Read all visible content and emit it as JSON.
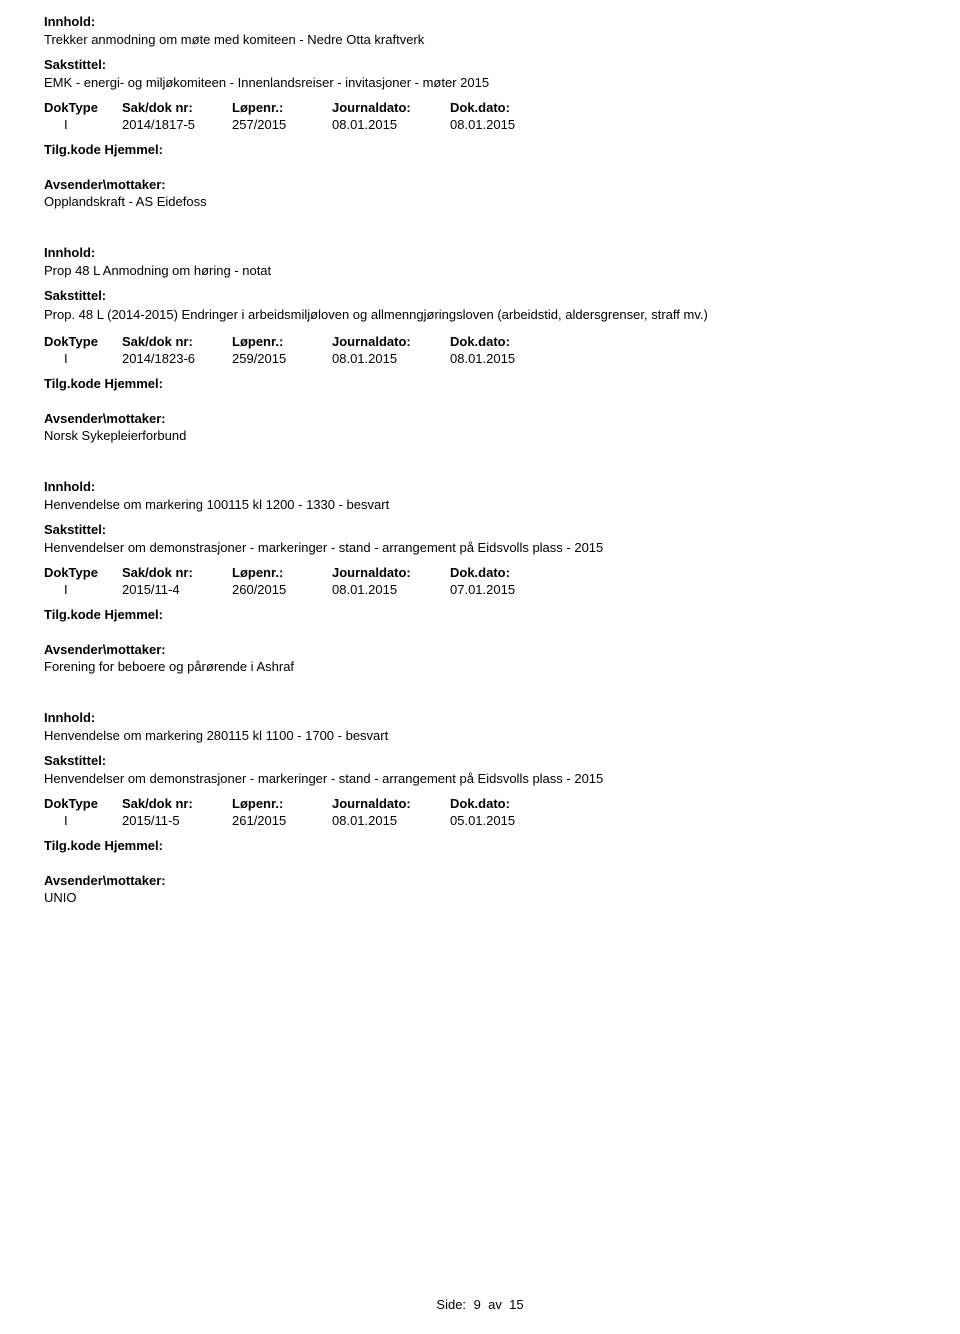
{
  "labels": {
    "innhold": "Innhold:",
    "sakstittel": "Sakstittel:",
    "doktype": "DokType",
    "sakdok": "Sak/dok nr:",
    "lopenr": "Løpenr.:",
    "journaldato": "Journaldato:",
    "dokdato": "Dok.dato:",
    "tilgkode": "Tilg.kode",
    "hjemmel": "Hjemmel:",
    "avsender": "Avsender\\mottaker:"
  },
  "records": [
    {
      "innhold": "Trekker anmodning om møte med komiteen - Nedre Otta kraftverk",
      "sakstittel": "EMK - energi- og miljøkomiteen - Innenlandsreiser - invitasjoner - møter 2015",
      "doktype": "I",
      "sakdok": "2014/1817-5",
      "lopenr": "257/2015",
      "journaldato": "08.01.2015",
      "dokdato": "08.01.2015",
      "avsender": "Opplandskraft - AS Eidefoss"
    },
    {
      "innhold": "Prop 48 L Anmodning om høring - notat",
      "sakstittel": "Prop. 48 L (2014-2015) Endringer i arbeidsmiljøloven og allmenngjøringsloven (arbeidstid, aldersgrenser, straff mv.)",
      "doktype": "I",
      "sakdok": "2014/1823-6",
      "lopenr": "259/2015",
      "journaldato": "08.01.2015",
      "dokdato": "08.01.2015",
      "avsender": "Norsk Sykepleierforbund"
    },
    {
      "innhold": "Henvendelse om markering 100115 kl 1200 - 1330 - besvart",
      "sakstittel": "Henvendelser om demonstrasjoner - markeringer - stand - arrangement på Eidsvolls plass - 2015",
      "doktype": "I",
      "sakdok": "2015/11-4",
      "lopenr": "260/2015",
      "journaldato": "08.01.2015",
      "dokdato": "07.01.2015",
      "avsender": "Forening for beboere og pårørende i Ashraf"
    },
    {
      "innhold": "Henvendelse om markering 280115 kl 1100 - 1700 - besvart",
      "sakstittel": "Henvendelser om demonstrasjoner - markeringer - stand - arrangement på Eidsvolls plass - 2015",
      "doktype": "I",
      "sakdok": "2015/11-5",
      "lopenr": "261/2015",
      "journaldato": "08.01.2015",
      "dokdato": "05.01.2015",
      "avsender": "UNIO"
    }
  ],
  "footer": {
    "side_label": "Side:",
    "page": "9",
    "av": "av",
    "total": "15"
  }
}
